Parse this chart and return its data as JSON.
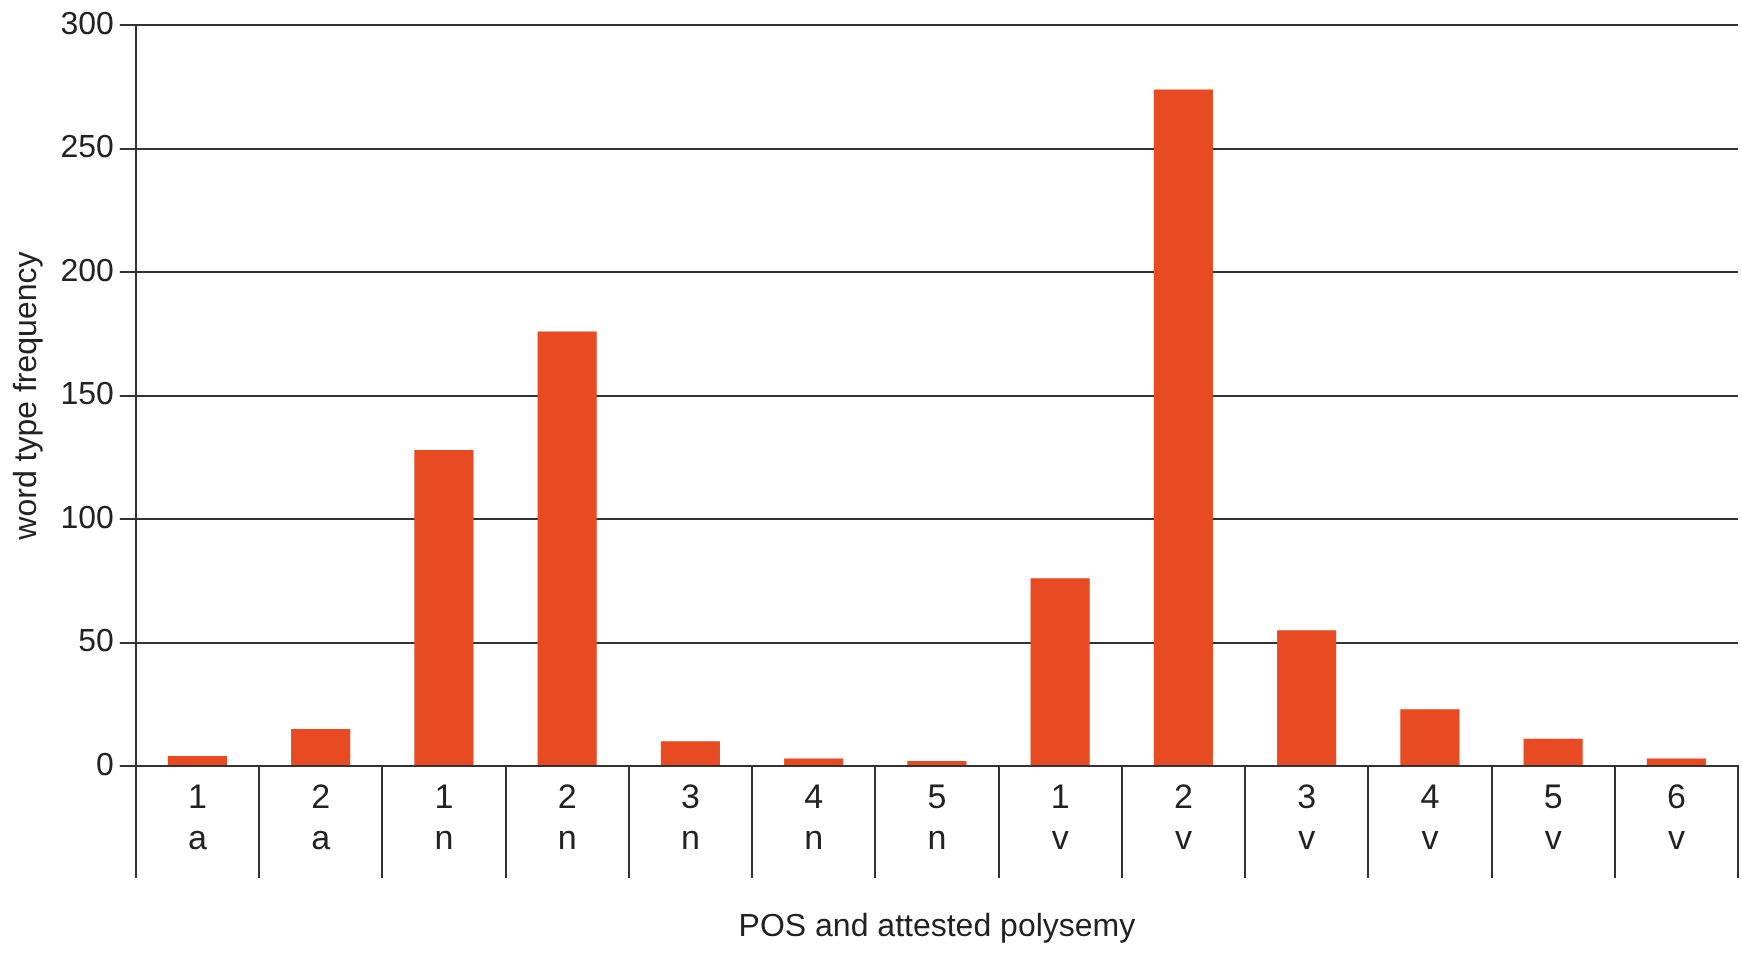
{
  "chart_data": {
    "type": "bar",
    "xlabel": "POS and attested polysemy",
    "ylabel": "word type frequency",
    "categories": [
      "1\na",
      "2\na",
      "1\nn",
      "2\nn",
      "3\nn",
      "4\nn",
      "5\nn",
      "1\nv",
      "2\nv",
      "3\nv",
      "4\nv",
      "5\nv",
      "6\nv"
    ],
    "values": [
      4,
      15,
      128,
      176,
      10,
      3,
      2,
      76,
      274,
      55,
      23,
      11,
      3
    ],
    "color": "#e84a22",
    "ylim": [
      0,
      300
    ],
    "yticks": [
      0,
      50,
      100,
      150,
      200,
      250,
      300
    ],
    "grid": "y",
    "legend": false
  }
}
